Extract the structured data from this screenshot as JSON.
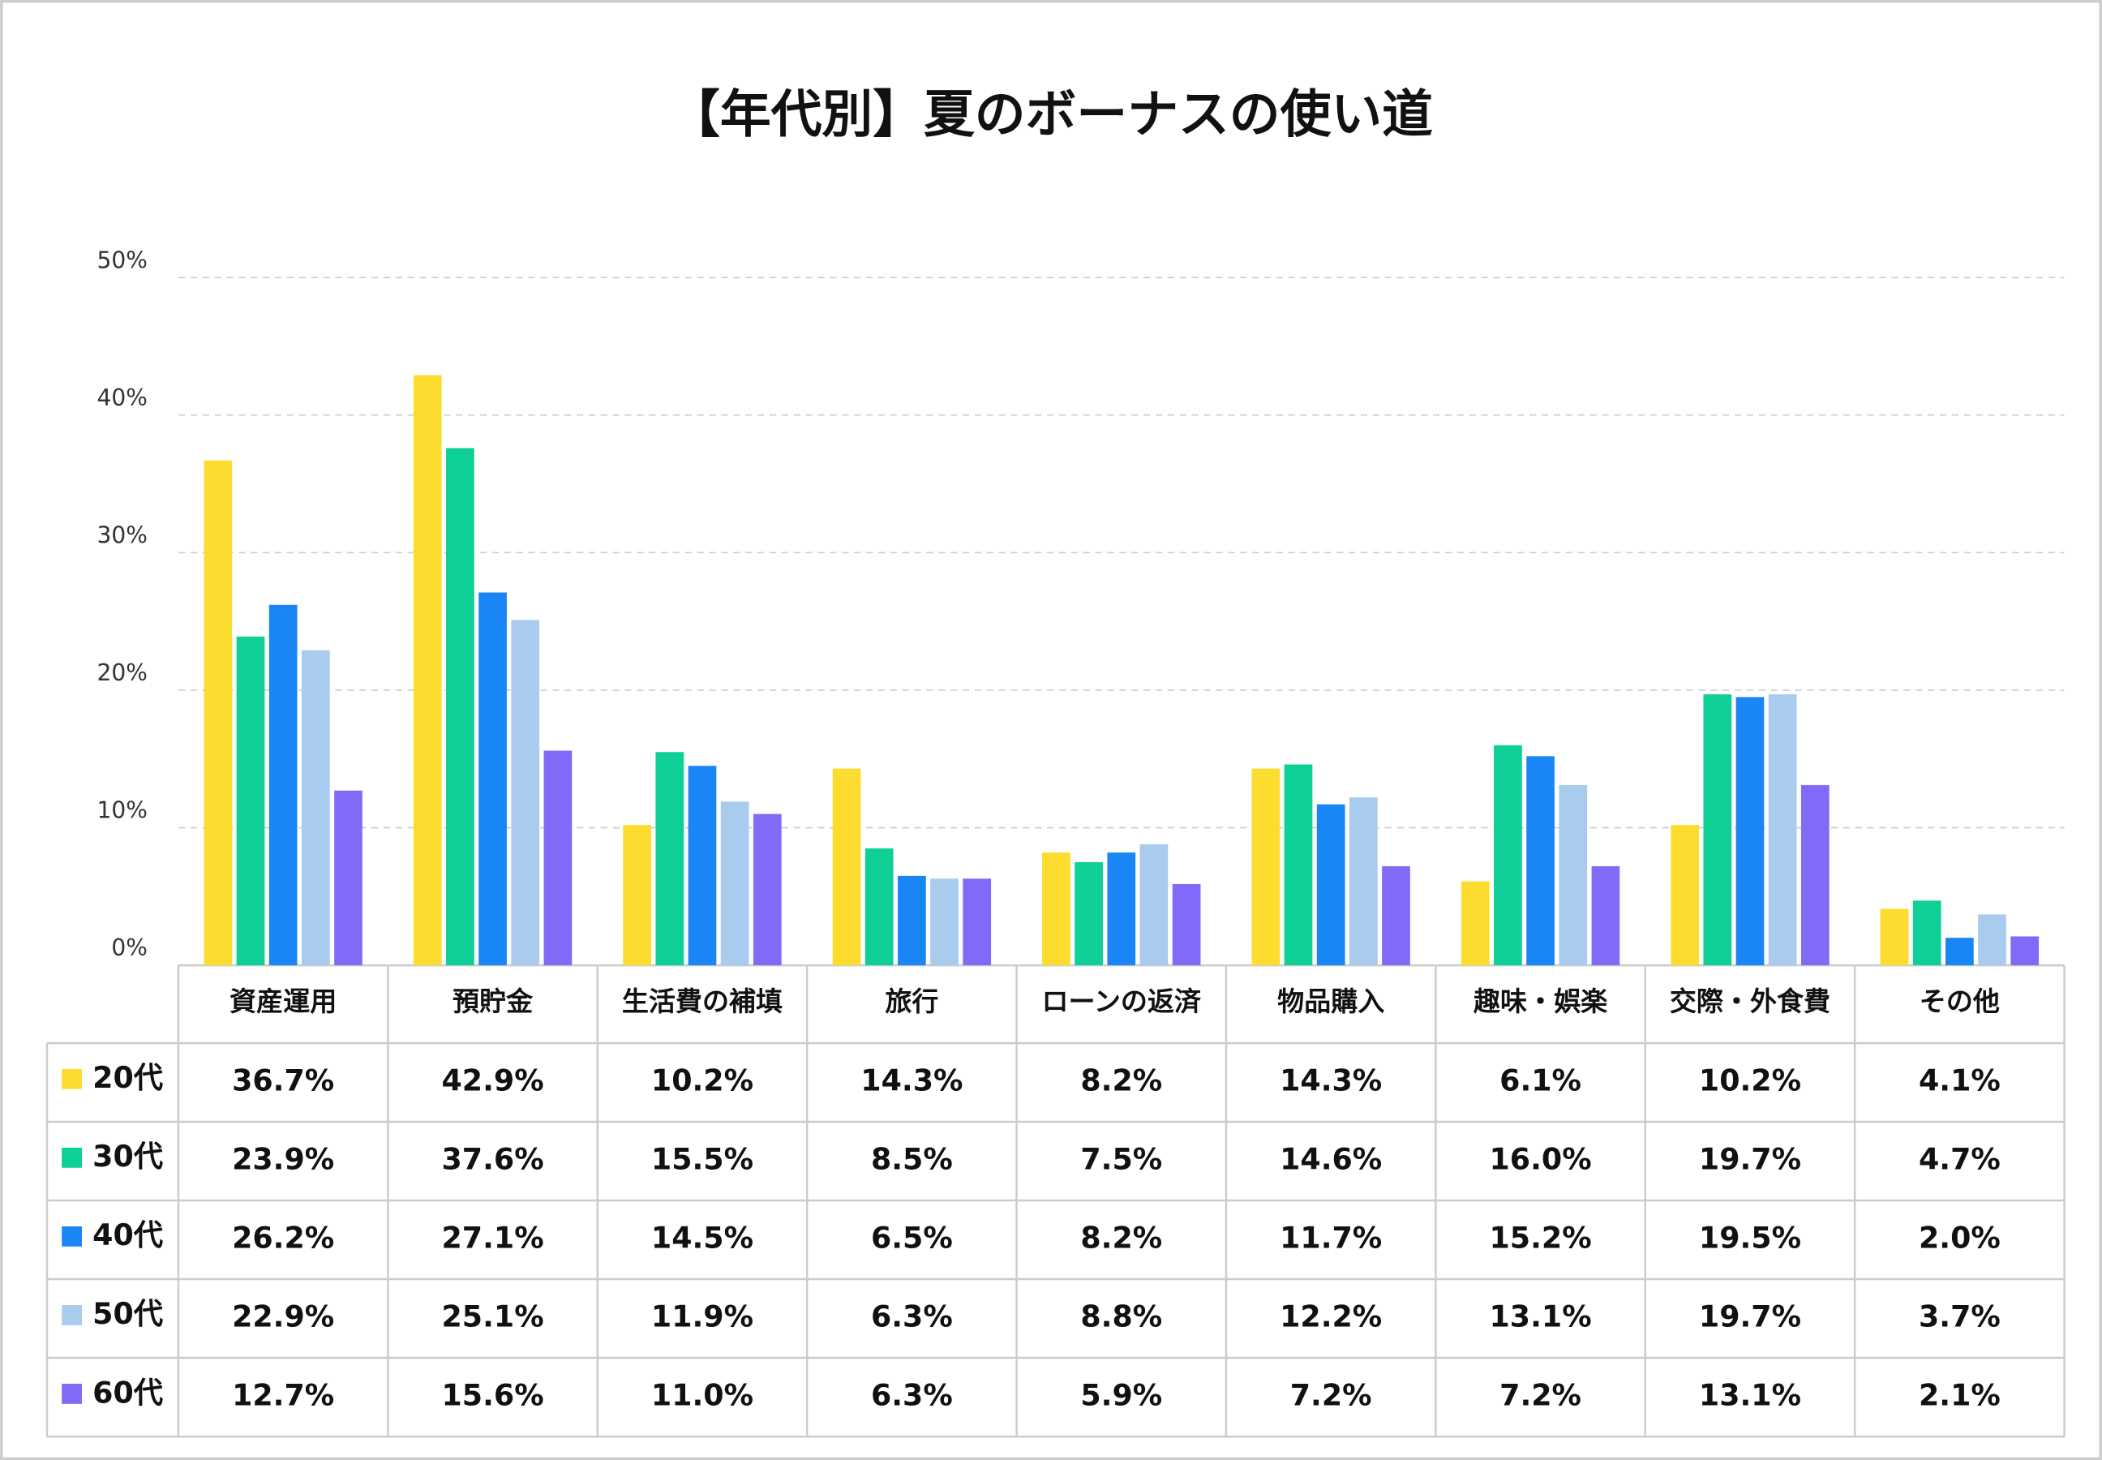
{
  "chart_data": {
    "type": "bar",
    "title": "【年代別】夏のボーナスの使い道",
    "categories": [
      "資産運用",
      "預貯金",
      "生活費の補填",
      "旅行",
      "ローンの返済",
      "物品購入",
      "趣味・娯楽",
      "交際・外食費",
      "その他"
    ],
    "series": [
      {
        "name": "20代",
        "color": "#fcdc2e",
        "values": [
          36.7,
          42.9,
          10.2,
          14.3,
          8.2,
          14.3,
          6.1,
          10.2,
          4.1
        ],
        "value_labels": [
          "36.7%",
          "42.9%",
          "10.2%",
          "14.3%",
          "8.2%",
          "14.3%",
          "6.1%",
          "10.2%",
          "4.1%"
        ]
      },
      {
        "name": "30代",
        "color": "#0ecf95",
        "values": [
          23.9,
          37.6,
          15.5,
          8.5,
          7.5,
          14.6,
          16.0,
          19.7,
          4.7
        ],
        "value_labels": [
          "23.9%",
          "37.6%",
          "15.5%",
          "8.5%",
          "7.5%",
          "14.6%",
          "16.0%",
          "19.7%",
          "4.7%"
        ]
      },
      {
        "name": "40代",
        "color": "#1a86f5",
        "values": [
          26.2,
          27.1,
          14.5,
          6.5,
          8.2,
          11.7,
          15.2,
          19.5,
          2.0
        ],
        "value_labels": [
          "26.2%",
          "27.1%",
          "14.5%",
          "6.5%",
          "8.2%",
          "11.7%",
          "15.2%",
          "19.5%",
          "2.0%"
        ]
      },
      {
        "name": "50代",
        "color": "#a8cbee",
        "values": [
          22.9,
          25.1,
          11.9,
          6.3,
          8.8,
          12.2,
          13.1,
          19.7,
          3.7
        ],
        "value_labels": [
          "22.9%",
          "25.1%",
          "11.9%",
          "6.3%",
          "8.8%",
          "12.2%",
          "13.1%",
          "19.7%",
          "3.7%"
        ]
      },
      {
        "name": "60代",
        "color": "#7f6bf8",
        "values": [
          12.7,
          15.6,
          11.0,
          6.3,
          5.9,
          7.2,
          7.2,
          13.1,
          2.1
        ],
        "value_labels": [
          "12.7%",
          "15.6%",
          "11.0%",
          "6.3%",
          "5.9%",
          "7.2%",
          "7.2%",
          "13.1%",
          "2.1%"
        ]
      }
    ],
    "ylim": [
      0,
      50
    ],
    "yticks": [
      {
        "value": 0,
        "label": "0%"
      },
      {
        "value": 10,
        "label": "10%"
      },
      {
        "value": 20,
        "label": "20%"
      },
      {
        "value": 30,
        "label": "30%"
      },
      {
        "value": 40,
        "label": "40%"
      },
      {
        "value": 50,
        "label": "50%"
      }
    ],
    "grid": true
  }
}
